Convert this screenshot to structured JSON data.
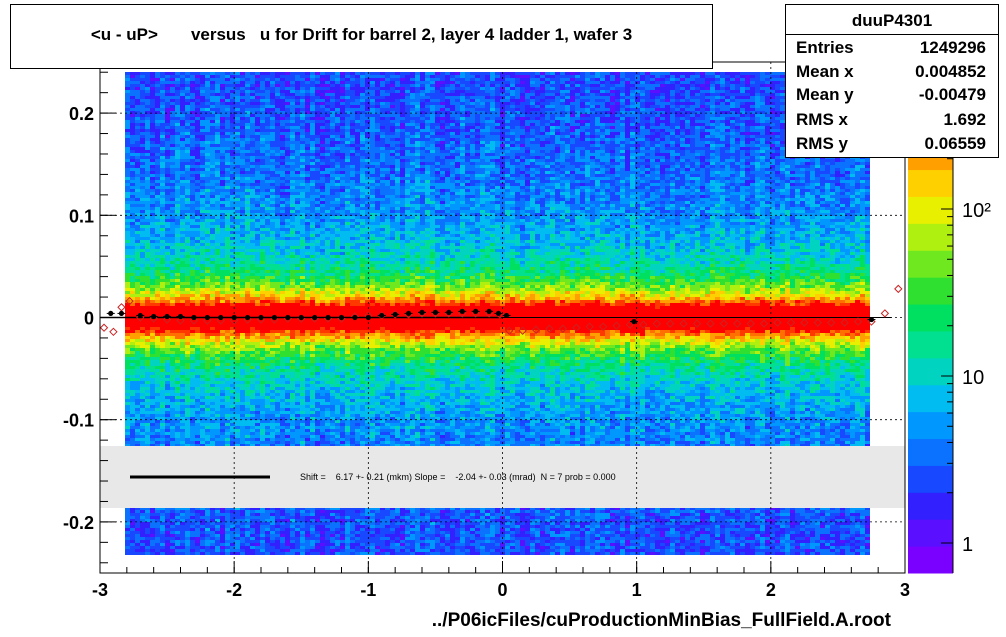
{
  "chart_data": {
    "type": "heatmap",
    "title": "<u - uP>       versus   u for Drift for barrel 2, layer 4 ladder 1, wafer 3",
    "xlim": [
      -3,
      3
    ],
    "ylim": [
      -0.25,
      0.25
    ],
    "x_ticks": [
      "-3",
      "-2",
      "-1",
      "0",
      "1",
      "2",
      "3"
    ],
    "y_ticks": [
      "-0.2",
      "-0.1",
      "0",
      "0.1",
      "0.2"
    ],
    "z_scale": "log",
    "z_ticks": [
      "1",
      "10",
      "10²"
    ],
    "grid": true,
    "profile_series": [
      {
        "name": "black profile",
        "color": "#000000",
        "x": [
          -2.92,
          -2.84,
          -2.7,
          -2.6,
          -2.5,
          -2.4,
          -2.3,
          -2.2,
          -2.1,
          -2.0,
          -1.9,
          -1.8,
          -1.7,
          -1.6,
          -1.5,
          -1.4,
          -1.3,
          -1.2,
          -1.1,
          -1.0,
          -0.9,
          -0.8,
          -0.7,
          -0.6,
          -0.5,
          -0.4,
          -0.3,
          -0.2,
          -0.1,
          -0.03,
          0.03,
          0.98,
          2.75
        ],
        "y": [
          0.004,
          0.004,
          0.002,
          0.001,
          0.001,
          0.001,
          0.0,
          0.0,
          0.0,
          0.0,
          0.0,
          0.0,
          0.0,
          0.0,
          0.0,
          0.0,
          0.0,
          0.0,
          0.0,
          0.0,
          0.002,
          0.003,
          0.004,
          0.005,
          0.005,
          0.005,
          0.006,
          0.006,
          0.006,
          0.004,
          0.002,
          -0.004,
          -0.002
        ]
      },
      {
        "name": "red profile",
        "color": "#cc2222",
        "x": [
          -2.97,
          -2.9,
          -2.84,
          -2.78,
          -2.7,
          -2.6,
          -2.5,
          -2.4,
          -2.3,
          -2.2,
          -2.1,
          -2.0,
          -1.9,
          -1.8,
          -1.7,
          -1.6,
          -1.5,
          -1.4,
          -1.3,
          -1.2,
          -1.1,
          -1.0,
          -0.9,
          -0.8,
          -0.7,
          -0.6,
          -0.5,
          -0.4,
          -0.3,
          -0.2,
          -0.1,
          -0.02,
          0.05,
          0.15,
          0.25,
          0.35,
          0.45,
          0.55,
          0.65,
          0.75,
          0.85,
          0.95,
          1.05,
          1.15,
          1.25,
          1.35,
          1.45,
          1.55,
          1.65,
          1.75,
          1.85,
          1.95,
          2.05,
          2.15,
          2.25,
          2.35,
          2.45,
          2.55,
          2.65,
          2.75,
          2.85,
          2.95
        ],
        "y": [
          -0.01,
          -0.014,
          0.01,
          0.016,
          0.0,
          -0.001,
          -0.002,
          -0.003,
          -0.003,
          -0.003,
          -0.003,
          -0.003,
          -0.002,
          -0.002,
          -0.002,
          -0.001,
          -0.001,
          -0.001,
          -0.001,
          -0.001,
          0.001,
          0.002,
          0.002,
          0.003,
          0.003,
          0.004,
          0.004,
          0.004,
          0.004,
          0.004,
          0.004,
          0.003,
          -0.013,
          -0.013,
          -0.012,
          -0.011,
          -0.011,
          -0.01,
          -0.009,
          -0.009,
          -0.008,
          -0.007,
          -0.007,
          -0.006,
          -0.006,
          -0.006,
          -0.006,
          -0.006,
          -0.006,
          -0.006,
          -0.006,
          -0.006,
          -0.005,
          -0.005,
          -0.005,
          -0.005,
          -0.005,
          -0.005,
          -0.004,
          -0.004,
          0.004,
          0.028
        ]
      }
    ],
    "fit_line_x": [
      -3,
      0
    ]
  },
  "title_text": "<u - uP>       versus   u for Drift for barrel 2, layer 4 ladder 1, wafer 3",
  "stats": {
    "name": "duuP4301",
    "rows": [
      {
        "label": "Entries",
        "value": "1249296"
      },
      {
        "label": "Mean x",
        "value": "0.004852"
      },
      {
        "label": "Mean y",
        "value": "-0.00479"
      },
      {
        "label": "RMS x",
        "value": "1.692"
      },
      {
        "label": "RMS y",
        "value": "0.06559"
      }
    ]
  },
  "fit_legend": "Shift =    6.17 +- 0.21 (mkm) Slope =    -2.04 +- 0.03 (mrad)  N = 7 prob = 0.000",
  "x_axis_file": "../P06icFiles/cuProductionMinBias_FullField.A.root",
  "colors": {
    "palette": [
      "#7a00ff",
      "#5a10ff",
      "#3320ff",
      "#1848ff",
      "#0a72ff",
      "#0098ff",
      "#00bcf0",
      "#00d4c0",
      "#00e090",
      "#00e060",
      "#30e030",
      "#70e820",
      "#b0f010",
      "#e8f000",
      "#ffd000",
      "#ffa000",
      "#ff7000",
      "#ff3800",
      "#ff0000"
    ]
  }
}
